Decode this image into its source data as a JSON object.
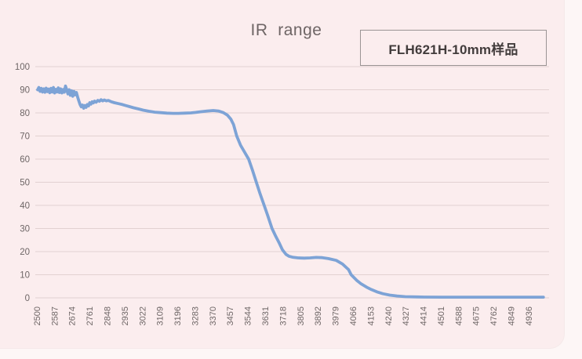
{
  "chart_data": {
    "type": "line",
    "title": "IR  range",
    "series_label": "FLH621H-10mm样品",
    "xlabel": "",
    "ylabel": "",
    "xlim": [
      2500,
      5010
    ],
    "ylim": [
      0,
      100
    ],
    "grid": "horizontal",
    "legend_position": "top-right-box",
    "colors": {
      "line": "#7da3d6",
      "grid": "#e2d1d1",
      "background": "#fbedee",
      "text": "#6e6666",
      "legend_border": "#9a9494"
    },
    "y_ticks": [
      0,
      10,
      20,
      30,
      40,
      50,
      60,
      70,
      80,
      90,
      100
    ],
    "x_ticks": [
      2500,
      2587,
      2674,
      2761,
      2848,
      2935,
      3022,
      3109,
      3196,
      3283,
      3370,
      3457,
      3544,
      3631,
      3718,
      3805,
      3892,
      3979,
      4066,
      4153,
      4240,
      4327,
      4414,
      4501,
      4588,
      4675,
      4762,
      4849,
      4936
    ],
    "series": [
      {
        "name": "FLH621H-10mm样品",
        "points": [
          [
            2500,
            90
          ],
          [
            2506,
            91
          ],
          [
            2512,
            89.3
          ],
          [
            2518,
            90.6
          ],
          [
            2524,
            89
          ],
          [
            2530,
            90.4
          ],
          [
            2536,
            88.9
          ],
          [
            2542,
            90.7
          ],
          [
            2548,
            89.2
          ],
          [
            2554,
            90.3
          ],
          [
            2560,
            88.7
          ],
          [
            2566,
            90.6
          ],
          [
            2572,
            89
          ],
          [
            2578,
            91
          ],
          [
            2584,
            88.6
          ],
          [
            2590,
            90.2
          ],
          [
            2596,
            89
          ],
          [
            2602,
            90.8
          ],
          [
            2608,
            88.8
          ],
          [
            2614,
            90.4
          ],
          [
            2620,
            88.6
          ],
          [
            2626,
            90.1
          ],
          [
            2632,
            88.9
          ],
          [
            2638,
            91.6
          ],
          [
            2644,
            90
          ],
          [
            2650,
            88.2
          ],
          [
            2656,
            90
          ],
          [
            2662,
            87.6
          ],
          [
            2668,
            89.6
          ],
          [
            2674,
            87.2
          ],
          [
            2680,
            89.3
          ],
          [
            2686,
            87.8
          ],
          [
            2692,
            88.8
          ],
          [
            2698,
            86.8
          ],
          [
            2704,
            85.2
          ],
          [
            2710,
            83.6
          ],
          [
            2716,
            82.6
          ],
          [
            2722,
            83.4
          ],
          [
            2728,
            82
          ],
          [
            2734,
            83.2
          ],
          [
            2740,
            82.4
          ],
          [
            2746,
            83.6
          ],
          [
            2752,
            83
          ],
          [
            2758,
            84.4
          ],
          [
            2764,
            83.8
          ],
          [
            2770,
            84.8
          ],
          [
            2776,
            84.3
          ],
          [
            2782,
            85.1
          ],
          [
            2790,
            84.6
          ],
          [
            2798,
            85.4
          ],
          [
            2806,
            85
          ],
          [
            2814,
            85.7
          ],
          [
            2822,
            85.2
          ],
          [
            2830,
            85.6
          ],
          [
            2840,
            85.2
          ],
          [
            2850,
            85.4
          ],
          [
            2865,
            84.8
          ],
          [
            2880,
            84.4
          ],
          [
            2900,
            84
          ],
          [
            2920,
            83.6
          ],
          [
            2935,
            83.2
          ],
          [
            2955,
            82.7
          ],
          [
            2975,
            82.2
          ],
          [
            3000,
            81.7
          ],
          [
            3022,
            81.2
          ],
          [
            3050,
            80.7
          ],
          [
            3080,
            80.3
          ],
          [
            3109,
            80.1
          ],
          [
            3140,
            79.9
          ],
          [
            3170,
            79.8
          ],
          [
            3196,
            79.8
          ],
          [
            3230,
            79.9
          ],
          [
            3260,
            80
          ],
          [
            3283,
            80.2
          ],
          [
            3310,
            80.5
          ],
          [
            3340,
            80.8
          ],
          [
            3370,
            81
          ],
          [
            3395,
            80.8
          ],
          [
            3420,
            80.1
          ],
          [
            3440,
            79
          ],
          [
            3457,
            77.3
          ],
          [
            3470,
            75
          ],
          [
            3486,
            70
          ],
          [
            3505,
            66
          ],
          [
            3525,
            63
          ],
          [
            3545,
            60
          ],
          [
            3565,
            55
          ],
          [
            3583,
            50
          ],
          [
            3602,
            45
          ],
          [
            3622,
            40
          ],
          [
            3640,
            35.5
          ],
          [
            3661,
            30
          ],
          [
            3680,
            26.5
          ],
          [
            3695,
            24
          ],
          [
            3712,
            20.8
          ],
          [
            3730,
            18.8
          ],
          [
            3745,
            18
          ],
          [
            3762,
            17.6
          ],
          [
            3790,
            17.3
          ],
          [
            3820,
            17.2
          ],
          [
            3850,
            17.3
          ],
          [
            3880,
            17.5
          ],
          [
            3910,
            17.4
          ],
          [
            3940,
            17
          ],
          [
            3979,
            16.2
          ],
          [
            4010,
            14.6
          ],
          [
            4040,
            12.2
          ],
          [
            4053,
            10
          ],
          [
            4080,
            7.6
          ],
          [
            4100,
            6.2
          ],
          [
            4130,
            4.6
          ],
          [
            4153,
            3.6
          ],
          [
            4180,
            2.6
          ],
          [
            4210,
            1.8
          ],
          [
            4244,
            1.2
          ],
          [
            4280,
            0.8
          ],
          [
            4321,
            0.5
          ],
          [
            4380,
            0.4
          ],
          [
            4414,
            0.35
          ],
          [
            4500,
            0.3
          ],
          [
            4600,
            0.3
          ],
          [
            4700,
            0.3
          ],
          [
            4800,
            0.3
          ],
          [
            4900,
            0.3
          ],
          [
            5005,
            0.3
          ]
        ]
      }
    ]
  }
}
